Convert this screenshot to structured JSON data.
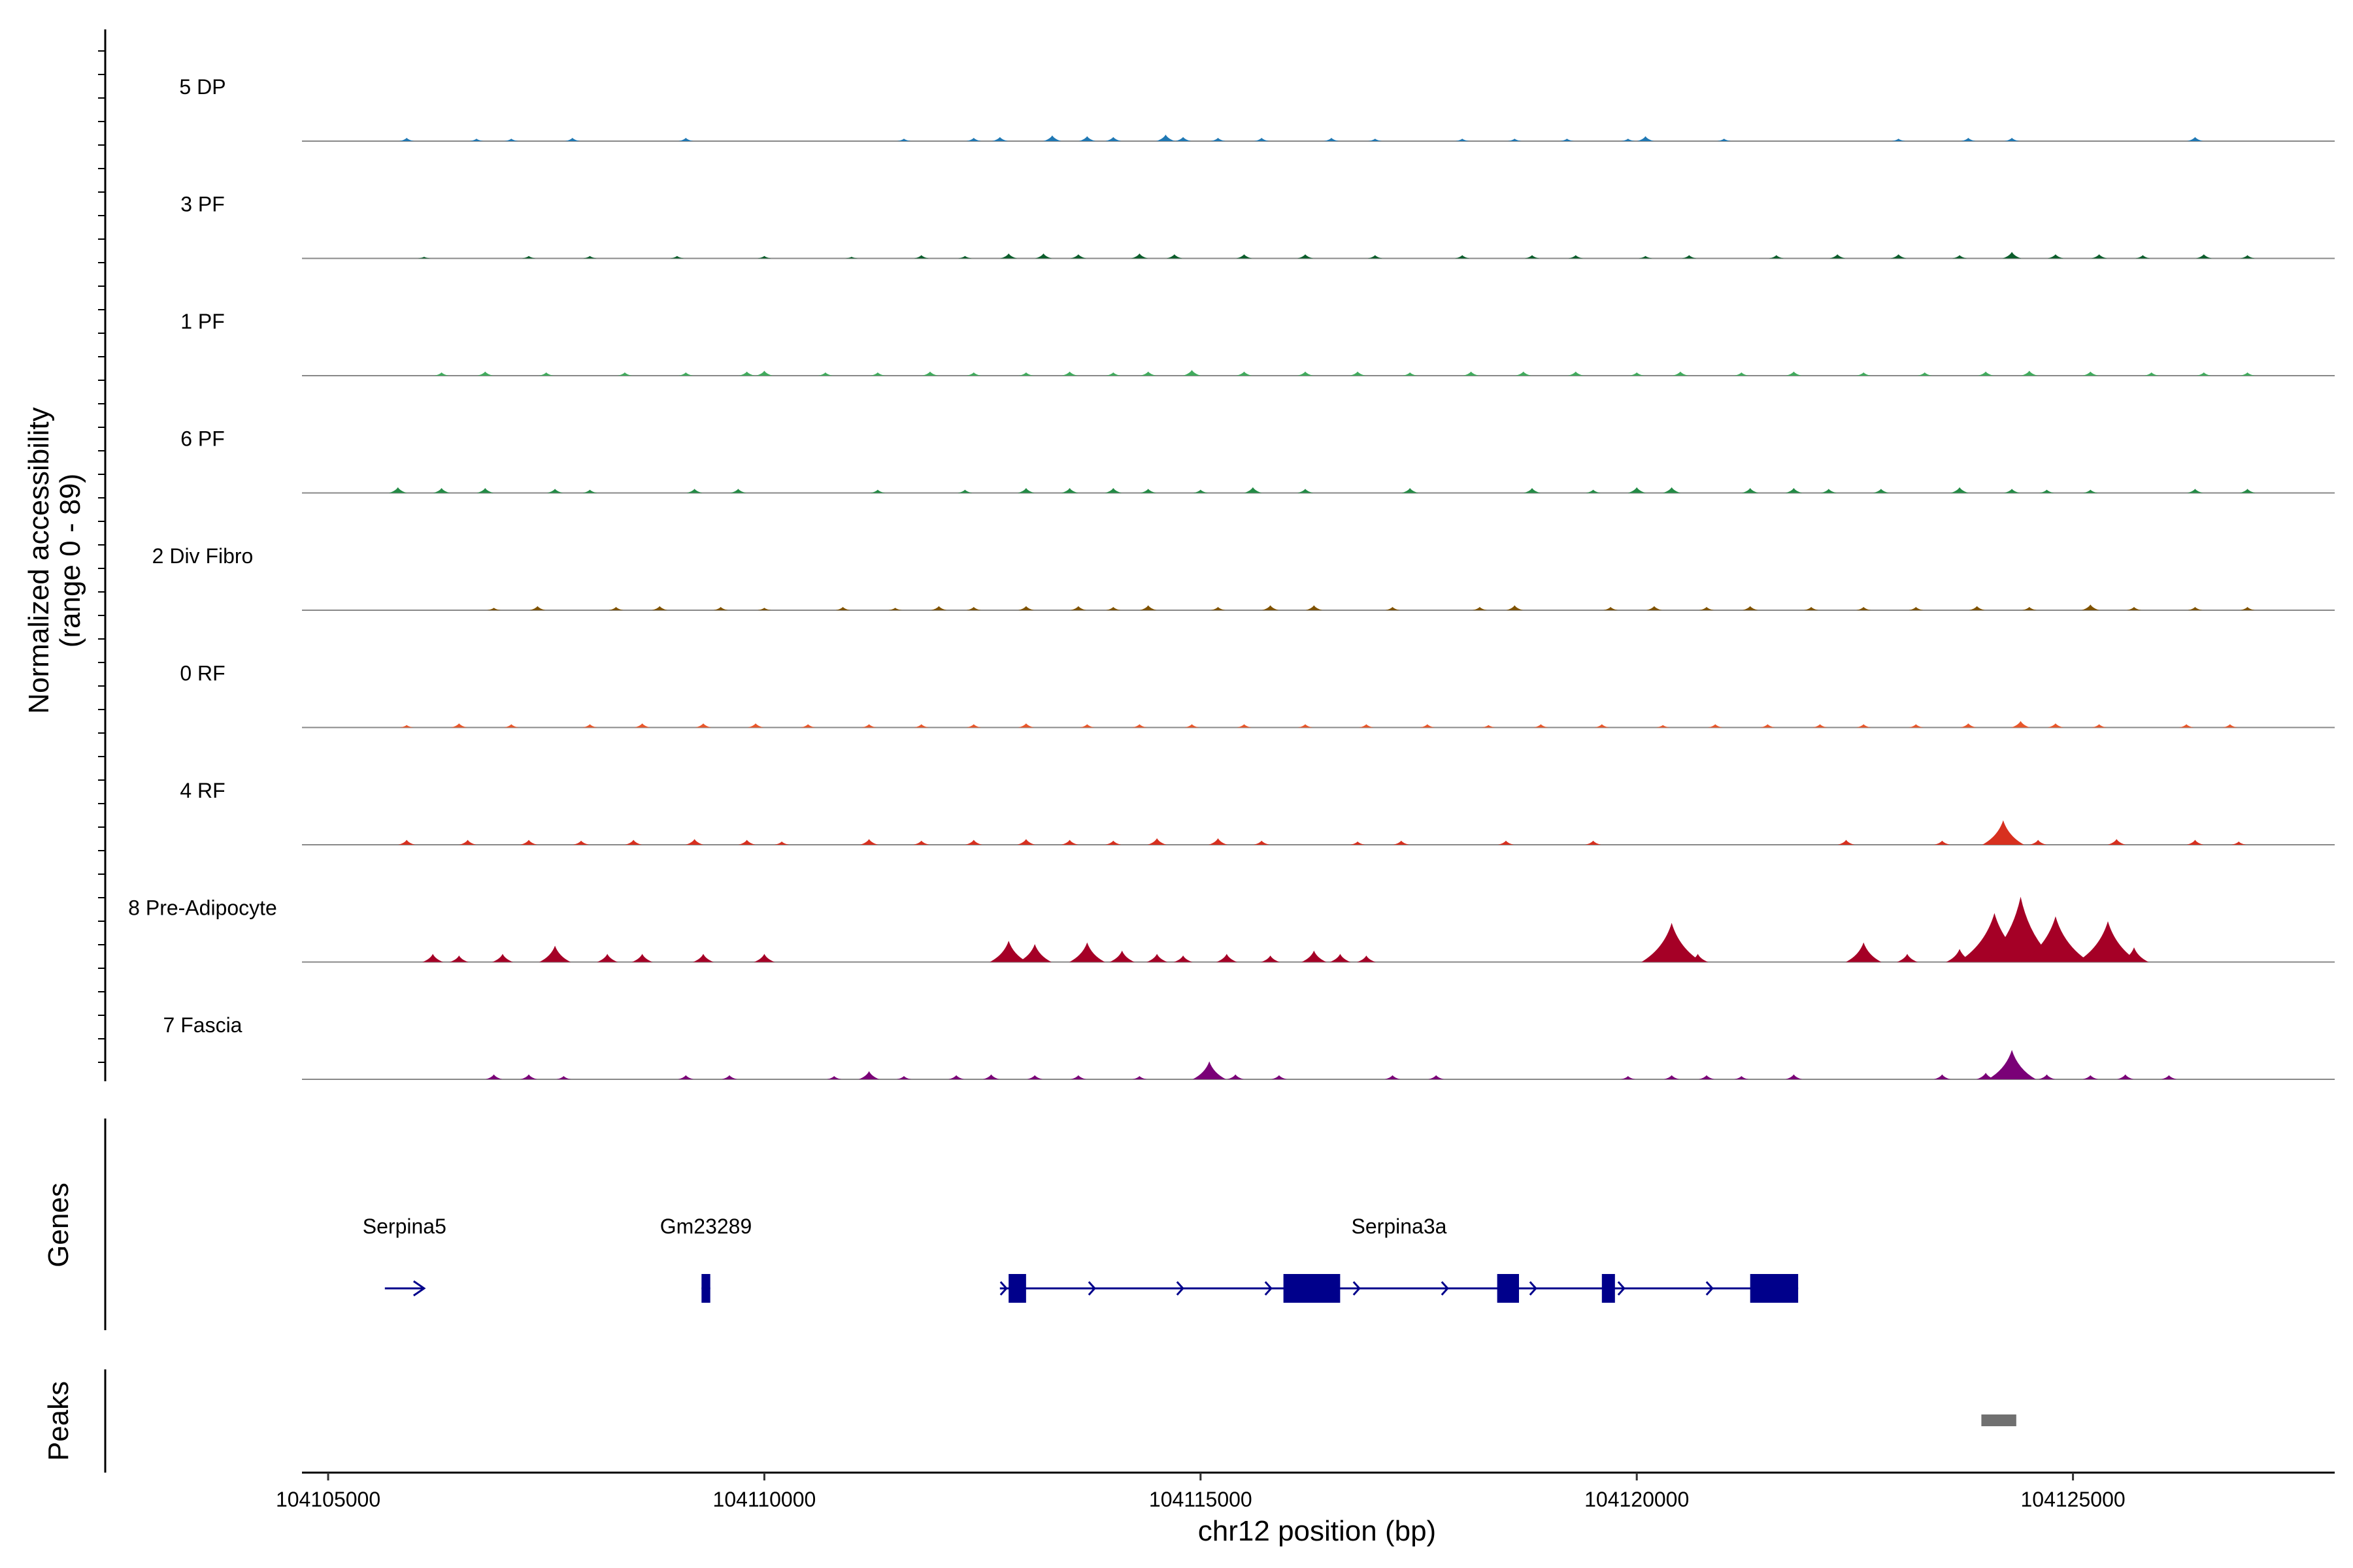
{
  "chart_data": {
    "type": "area",
    "title": "",
    "xlabel": "chr12 position (bp)",
    "ylabel_line1": "Normalized accessibility",
    "ylabel_line2": "(range 0 - 89)",
    "xlim": [
      104104700,
      104128000
    ],
    "x_ticks": [
      104105000,
      104110000,
      104115000,
      104120000,
      104125000
    ],
    "x_tick_labels": [
      "104105000",
      "104110000",
      "104115000",
      "104120000",
      "104125000"
    ],
    "y_range": [
      0,
      89
    ],
    "tracks": [
      {
        "name": "5 DP",
        "color": "#1f78b4",
        "peaks": [
          [
            104105900,
            2
          ],
          [
            104106700,
            1.5
          ],
          [
            104107100,
            1.5
          ],
          [
            104107800,
            2
          ],
          [
            104109100,
            2
          ],
          [
            104111600,
            1.5
          ],
          [
            104112400,
            2
          ],
          [
            104112700,
            2.5
          ],
          [
            104113300,
            3.5
          ],
          [
            104113700,
            3
          ],
          [
            104114000,
            2.5
          ],
          [
            104114600,
            4
          ],
          [
            104114800,
            2.5
          ],
          [
            104115200,
            2
          ],
          [
            104115700,
            2
          ],
          [
            104116500,
            2
          ],
          [
            104117000,
            1.5
          ],
          [
            104118000,
            1.5
          ],
          [
            104118600,
            1.5
          ],
          [
            104119200,
            1.5
          ],
          [
            104119900,
            1.5
          ],
          [
            104120100,
            3
          ],
          [
            104121000,
            1.5
          ],
          [
            104123000,
            1.5
          ],
          [
            104123800,
            2
          ],
          [
            104124300,
            2
          ],
          [
            104126400,
            2.5
          ]
        ]
      },
      {
        "name": "3 PF",
        "color": "#0b5d2b",
        "peaks": [
          [
            104106100,
            1
          ],
          [
            104107300,
            1.5
          ],
          [
            104108000,
            1.5
          ],
          [
            104109000,
            1.5
          ],
          [
            104110000,
            1.5
          ],
          [
            104111000,
            1
          ],
          [
            104111800,
            2
          ],
          [
            104112300,
            1.5
          ],
          [
            104112800,
            3
          ],
          [
            104113200,
            3
          ],
          [
            104113600,
            2.5
          ],
          [
            104114300,
            3
          ],
          [
            104114700,
            2.5
          ],
          [
            104115500,
            2.5
          ],
          [
            104116200,
            2.5
          ],
          [
            104117000,
            2
          ],
          [
            104118000,
            2
          ],
          [
            104118800,
            2
          ],
          [
            104119300,
            2
          ],
          [
            104120100,
            1.5
          ],
          [
            104120600,
            2
          ],
          [
            104121600,
            2
          ],
          [
            104122300,
            2.5
          ],
          [
            104123000,
            2.5
          ],
          [
            104123700,
            2
          ],
          [
            104124300,
            4
          ],
          [
            104124800,
            2.5
          ],
          [
            104125300,
            2.5
          ],
          [
            104125800,
            2
          ],
          [
            104126500,
            2.5
          ],
          [
            104127000,
            2
          ]
        ]
      },
      {
        "name": "1 PF",
        "color": "#41ab5d",
        "peaks": [
          [
            104106300,
            2
          ],
          [
            104106800,
            2.5
          ],
          [
            104107500,
            2
          ],
          [
            104108400,
            2
          ],
          [
            104109100,
            2
          ],
          [
            104109800,
            2.5
          ],
          [
            104110000,
            3
          ],
          [
            104110700,
            2
          ],
          [
            104111300,
            2
          ],
          [
            104111900,
            2.5
          ],
          [
            104112400,
            2
          ],
          [
            104113000,
            2
          ],
          [
            104113500,
            2.5
          ],
          [
            104114000,
            2
          ],
          [
            104114400,
            2.5
          ],
          [
            104114900,
            3.5
          ],
          [
            104115500,
            2.5
          ],
          [
            104116200,
            2.5
          ],
          [
            104116800,
            2.5
          ],
          [
            104117400,
            2
          ],
          [
            104118100,
            2.5
          ],
          [
            104118700,
            2.5
          ],
          [
            104119300,
            2.5
          ],
          [
            104120000,
            2
          ],
          [
            104120500,
            2.5
          ],
          [
            104121200,
            2
          ],
          [
            104121800,
            2.5
          ],
          [
            104122600,
            2
          ],
          [
            104123300,
            2
          ],
          [
            104124000,
            2.5
          ],
          [
            104124500,
            3
          ],
          [
            104125200,
            2.5
          ],
          [
            104125900,
            2
          ],
          [
            104126500,
            2
          ],
          [
            104127000,
            2
          ]
        ]
      },
      {
        "name": "6 PF",
        "color": "#238b45",
        "peaks": [
          [
            104105800,
            3.5
          ],
          [
            104106300,
            3
          ],
          [
            104106800,
            3
          ],
          [
            104107600,
            2.5
          ],
          [
            104108000,
            2
          ],
          [
            104109200,
            2.5
          ],
          [
            104109700,
            2.5
          ],
          [
            104111300,
            2
          ],
          [
            104112300,
            2
          ],
          [
            104113000,
            3
          ],
          [
            104113500,
            3
          ],
          [
            104114000,
            3
          ],
          [
            104114400,
            2.5
          ],
          [
            104115000,
            2
          ],
          [
            104115600,
            3.5
          ],
          [
            104116200,
            2.5
          ],
          [
            104117400,
            3
          ],
          [
            104118800,
            3
          ],
          [
            104119500,
            2
          ],
          [
            104120000,
            3.5
          ],
          [
            104120400,
            3.5
          ],
          [
            104121300,
            3
          ],
          [
            104121800,
            3
          ],
          [
            104122200,
            2.5
          ],
          [
            104122800,
            2.5
          ],
          [
            104123700,
            3.5
          ],
          [
            104124300,
            2.5
          ],
          [
            104124700,
            2
          ],
          [
            104125200,
            2
          ],
          [
            104126400,
            2.5
          ],
          [
            104127000,
            2.5
          ]
        ]
      },
      {
        "name": "2 Div Fibro",
        "color": "#7f5200",
        "peaks": [
          [
            104106900,
            1.5
          ],
          [
            104107400,
            2.5
          ],
          [
            104108300,
            2
          ],
          [
            104108800,
            2.5
          ],
          [
            104109500,
            2
          ],
          [
            104110000,
            1.5
          ],
          [
            104110900,
            2
          ],
          [
            104111500,
            1.5
          ],
          [
            104112000,
            2.5
          ],
          [
            104112400,
            2
          ],
          [
            104113000,
            2.5
          ],
          [
            104113600,
            2.5
          ],
          [
            104114000,
            2
          ],
          [
            104114400,
            3
          ],
          [
            104115200,
            2
          ],
          [
            104115800,
            3
          ],
          [
            104116300,
            3
          ],
          [
            104117200,
            2
          ],
          [
            104118200,
            2
          ],
          [
            104118600,
            3
          ],
          [
            104119700,
            2
          ],
          [
            104120200,
            2.5
          ],
          [
            104120800,
            2
          ],
          [
            104121300,
            2.5
          ],
          [
            104122000,
            2
          ],
          [
            104122600,
            2
          ],
          [
            104123200,
            2
          ],
          [
            104123900,
            2.5
          ],
          [
            104124500,
            2
          ],
          [
            104125200,
            3.5
          ],
          [
            104125700,
            2
          ],
          [
            104126400,
            2
          ],
          [
            104127000,
            2
          ]
        ]
      },
      {
        "name": "0 RF",
        "color": "#e9572b",
        "peaks": [
          [
            104105900,
            1.5
          ],
          [
            104106500,
            2.5
          ],
          [
            104107100,
            2
          ],
          [
            104108000,
            2
          ],
          [
            104108600,
            2.5
          ],
          [
            104109300,
            2.5
          ],
          [
            104109900,
            2.5
          ],
          [
            104110500,
            2
          ],
          [
            104111200,
            2
          ],
          [
            104111800,
            2
          ],
          [
            104112400,
            2
          ],
          [
            104113000,
            2.5
          ],
          [
            104113700,
            2
          ],
          [
            104114300,
            2
          ],
          [
            104114900,
            2
          ],
          [
            104115500,
            2
          ],
          [
            104116200,
            2
          ],
          [
            104116900,
            2
          ],
          [
            104117600,
            2
          ],
          [
            104118300,
            1.5
          ],
          [
            104118900,
            2
          ],
          [
            104119600,
            2
          ],
          [
            104120300,
            1.5
          ],
          [
            104120900,
            2
          ],
          [
            104121500,
            2
          ],
          [
            104122100,
            2
          ],
          [
            104122600,
            2
          ],
          [
            104123200,
            2
          ],
          [
            104123800,
            2.5
          ],
          [
            104124400,
            4
          ],
          [
            104124800,
            2.5
          ],
          [
            104125300,
            2
          ],
          [
            104126300,
            2
          ],
          [
            104126800,
            2
          ]
        ]
      },
      {
        "name": "4 RF",
        "color": "#d7301f",
        "peaks": [
          [
            104105900,
            3
          ],
          [
            104106600,
            3
          ],
          [
            104107300,
            3
          ],
          [
            104107900,
            2.5
          ],
          [
            104108500,
            3
          ],
          [
            104109200,
            3.5
          ],
          [
            104109800,
            3
          ],
          [
            104110200,
            2
          ],
          [
            104111200,
            3.5
          ],
          [
            104111800,
            2.5
          ],
          [
            104112400,
            3
          ],
          [
            104113000,
            3.5
          ],
          [
            104113500,
            3
          ],
          [
            104114000,
            2.5
          ],
          [
            104114500,
            4
          ],
          [
            104115200,
            4
          ],
          [
            104115700,
            2.5
          ],
          [
            104116800,
            2
          ],
          [
            104117300,
            2.5
          ],
          [
            104118500,
            2.5
          ],
          [
            104119500,
            2.5
          ],
          [
            104122400,
            3
          ],
          [
            104123500,
            2.5
          ],
          [
            104124200,
            15
          ],
          [
            104124600,
            3
          ],
          [
            104125500,
            3.5
          ],
          [
            104126400,
            3
          ],
          [
            104126900,
            2
          ]
        ]
      },
      {
        "name": "8 Pre-Adipocyte",
        "color": "#a50026",
        "peaks": [
          [
            104106200,
            5
          ],
          [
            104106500,
            4
          ],
          [
            104107000,
            5
          ],
          [
            104107600,
            10
          ],
          [
            104108200,
            5
          ],
          [
            104108600,
            5
          ],
          [
            104109300,
            5
          ],
          [
            104110000,
            5
          ],
          [
            104112800,
            13
          ],
          [
            104113100,
            11
          ],
          [
            104113700,
            12
          ],
          [
            104114100,
            7
          ],
          [
            104114500,
            5
          ],
          [
            104114800,
            4
          ],
          [
            104115300,
            5
          ],
          [
            104115800,
            4
          ],
          [
            104116300,
            7
          ],
          [
            104116600,
            5
          ],
          [
            104116900,
            4
          ],
          [
            104120400,
            24
          ],
          [
            104120700,
            5
          ],
          [
            104122600,
            12
          ],
          [
            104123100,
            5
          ],
          [
            104123700,
            8
          ],
          [
            104124100,
            30
          ],
          [
            104124400,
            40
          ],
          [
            104124800,
            28
          ],
          [
            104125400,
            25
          ],
          [
            104125700,
            9
          ]
        ]
      },
      {
        "name": "7 Fascia",
        "color": "#7a0177",
        "peaks": [
          [
            104106900,
            3
          ],
          [
            104107300,
            3
          ],
          [
            104107700,
            2
          ],
          [
            104109100,
            2.5
          ],
          [
            104109600,
            2.5
          ],
          [
            104110800,
            2
          ],
          [
            104111200,
            5
          ],
          [
            104111600,
            2
          ],
          [
            104112200,
            2.5
          ],
          [
            104112600,
            3
          ],
          [
            104113100,
            2.5
          ],
          [
            104113600,
            2.5
          ],
          [
            104114300,
            2
          ],
          [
            104115100,
            11
          ],
          [
            104115400,
            3
          ],
          [
            104115900,
            2.5
          ],
          [
            104117200,
            2.5
          ],
          [
            104117700,
            2.5
          ],
          [
            104119900,
            2
          ],
          [
            104120400,
            2.5
          ],
          [
            104120800,
            2.5
          ],
          [
            104121200,
            2
          ],
          [
            104121800,
            3
          ],
          [
            104123500,
            3
          ],
          [
            104124000,
            4
          ],
          [
            104124300,
            18
          ],
          [
            104124700,
            3
          ],
          [
            104125200,
            2.5
          ],
          [
            104125600,
            3
          ],
          [
            104126100,
            2.5
          ]
        ]
      }
    ],
    "genes": [
      {
        "name": "Serpina5",
        "start": 104105650,
        "end": 104106100,
        "strand": "+",
        "exons": []
      },
      {
        "name": "Gm23289",
        "start": 104109280,
        "end": 104109380,
        "strand": "+",
        "exons": [
          [
            104109280,
            104109380
          ]
        ]
      },
      {
        "name": "Serpina3a",
        "start": 104112700,
        "end": 104121850,
        "strand": "+",
        "exons": [
          [
            104112800,
            104113000
          ],
          [
            104115950,
            104116600
          ],
          [
            104118400,
            104118650
          ],
          [
            104119600,
            104119750
          ],
          [
            104121300,
            104121850
          ]
        ]
      }
    ],
    "peak_regions": [
      [
        104123950,
        104124350
      ]
    ],
    "panel_titles": {
      "genes": "Genes",
      "peaks": "Peaks"
    }
  }
}
